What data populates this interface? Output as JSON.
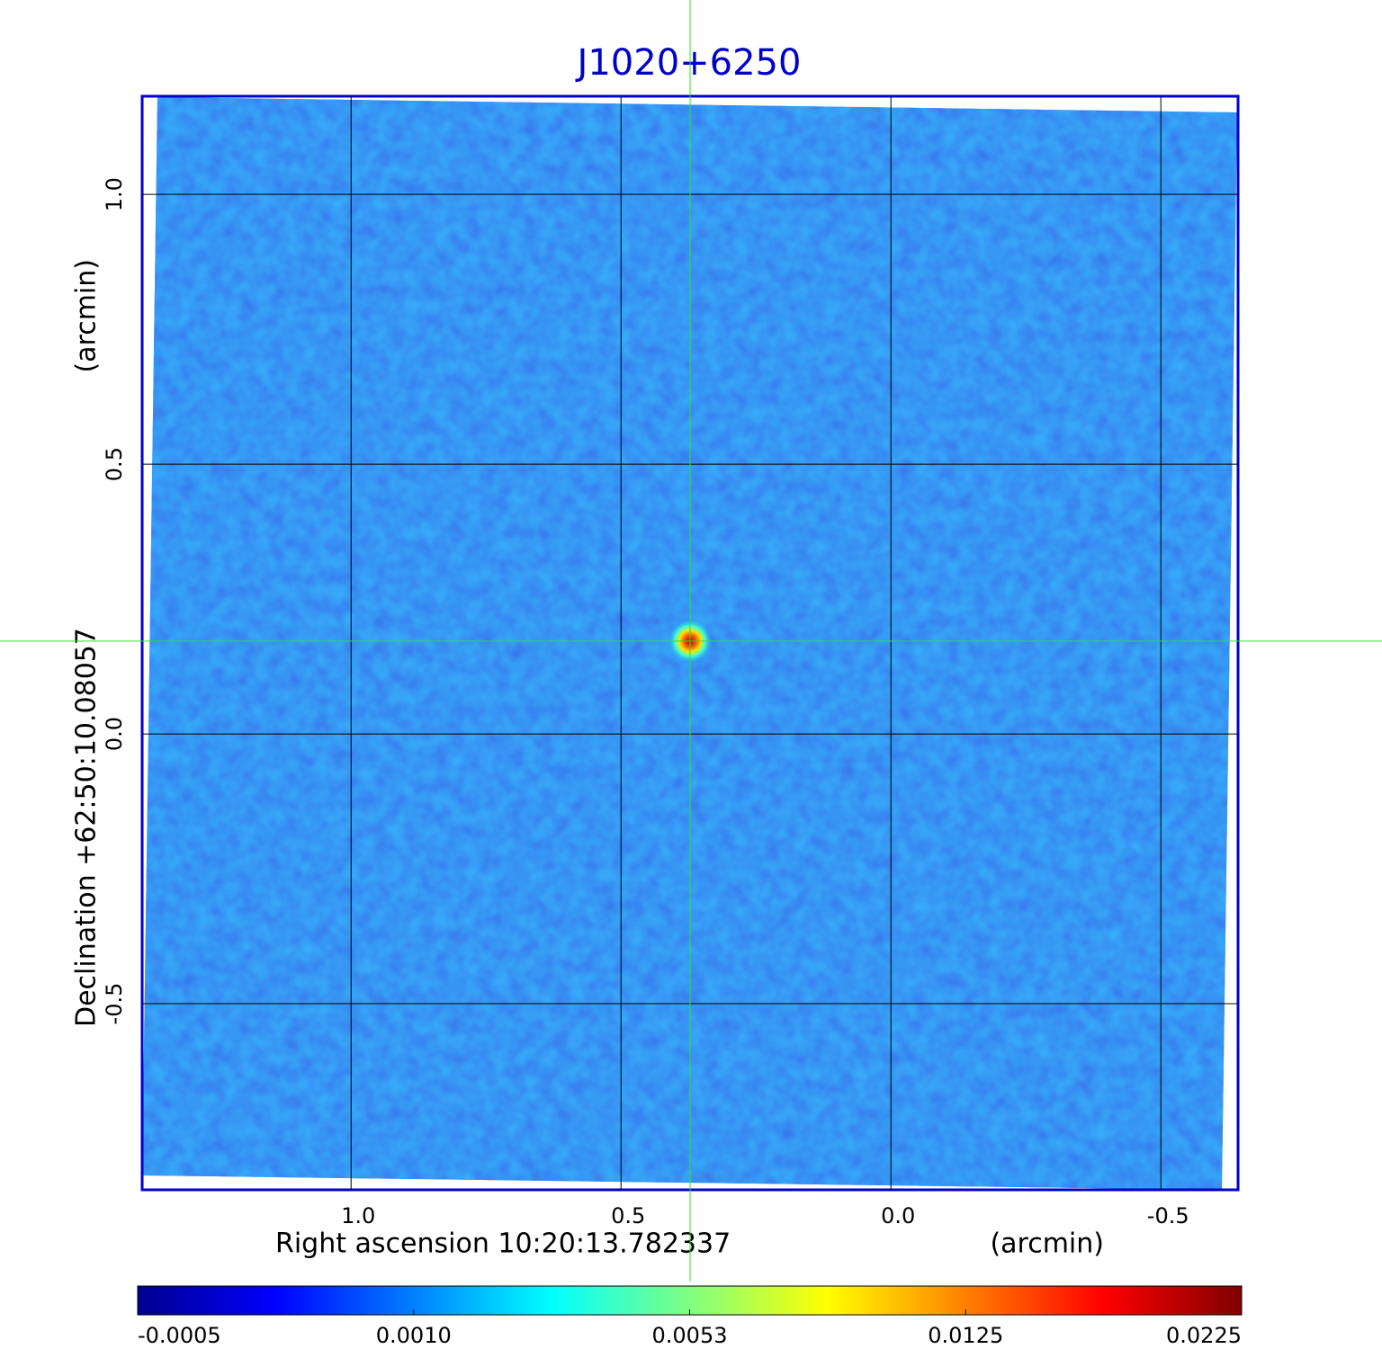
{
  "chart_data": {
    "type": "image",
    "title": "J1020+6250",
    "xlabel": "Right ascension  10:20:13.782337",
    "xunit": "(arcmin)",
    "ylabel": "Declination  +62:50:10.08057",
    "yunit": "(arcmin)",
    "xlim": [
      1.387,
      -0.643
    ],
    "ylim": [
      -0.845,
      1.182
    ],
    "xticks": [
      {
        "value": 1.0,
        "label": "1.0"
      },
      0.5,
      {
        "value": 0.0,
        "label": "0.0"
      },
      -0.5
    ],
    "yticks": [
      {
        "value": 1.0,
        "label": "1.0"
      },
      0.5,
      {
        "value": 0.0,
        "label": "0.0"
      },
      -0.5
    ],
    "grid": true,
    "source": {
      "x": 0.372,
      "y": 0.172
    },
    "colorbar": {
      "ticks": [
        -0.0005,
        {
          "value": 0.001,
          "label": "0.0010"
        },
        0.0053,
        0.0125,
        0.0225
      ],
      "colors": [
        "#00008f",
        "#0000ff",
        "#0080ff",
        "#00ffff",
        "#80ff80",
        "#ffff00",
        "#ff8000",
        "#ff0000",
        "#800000"
      ]
    }
  }
}
